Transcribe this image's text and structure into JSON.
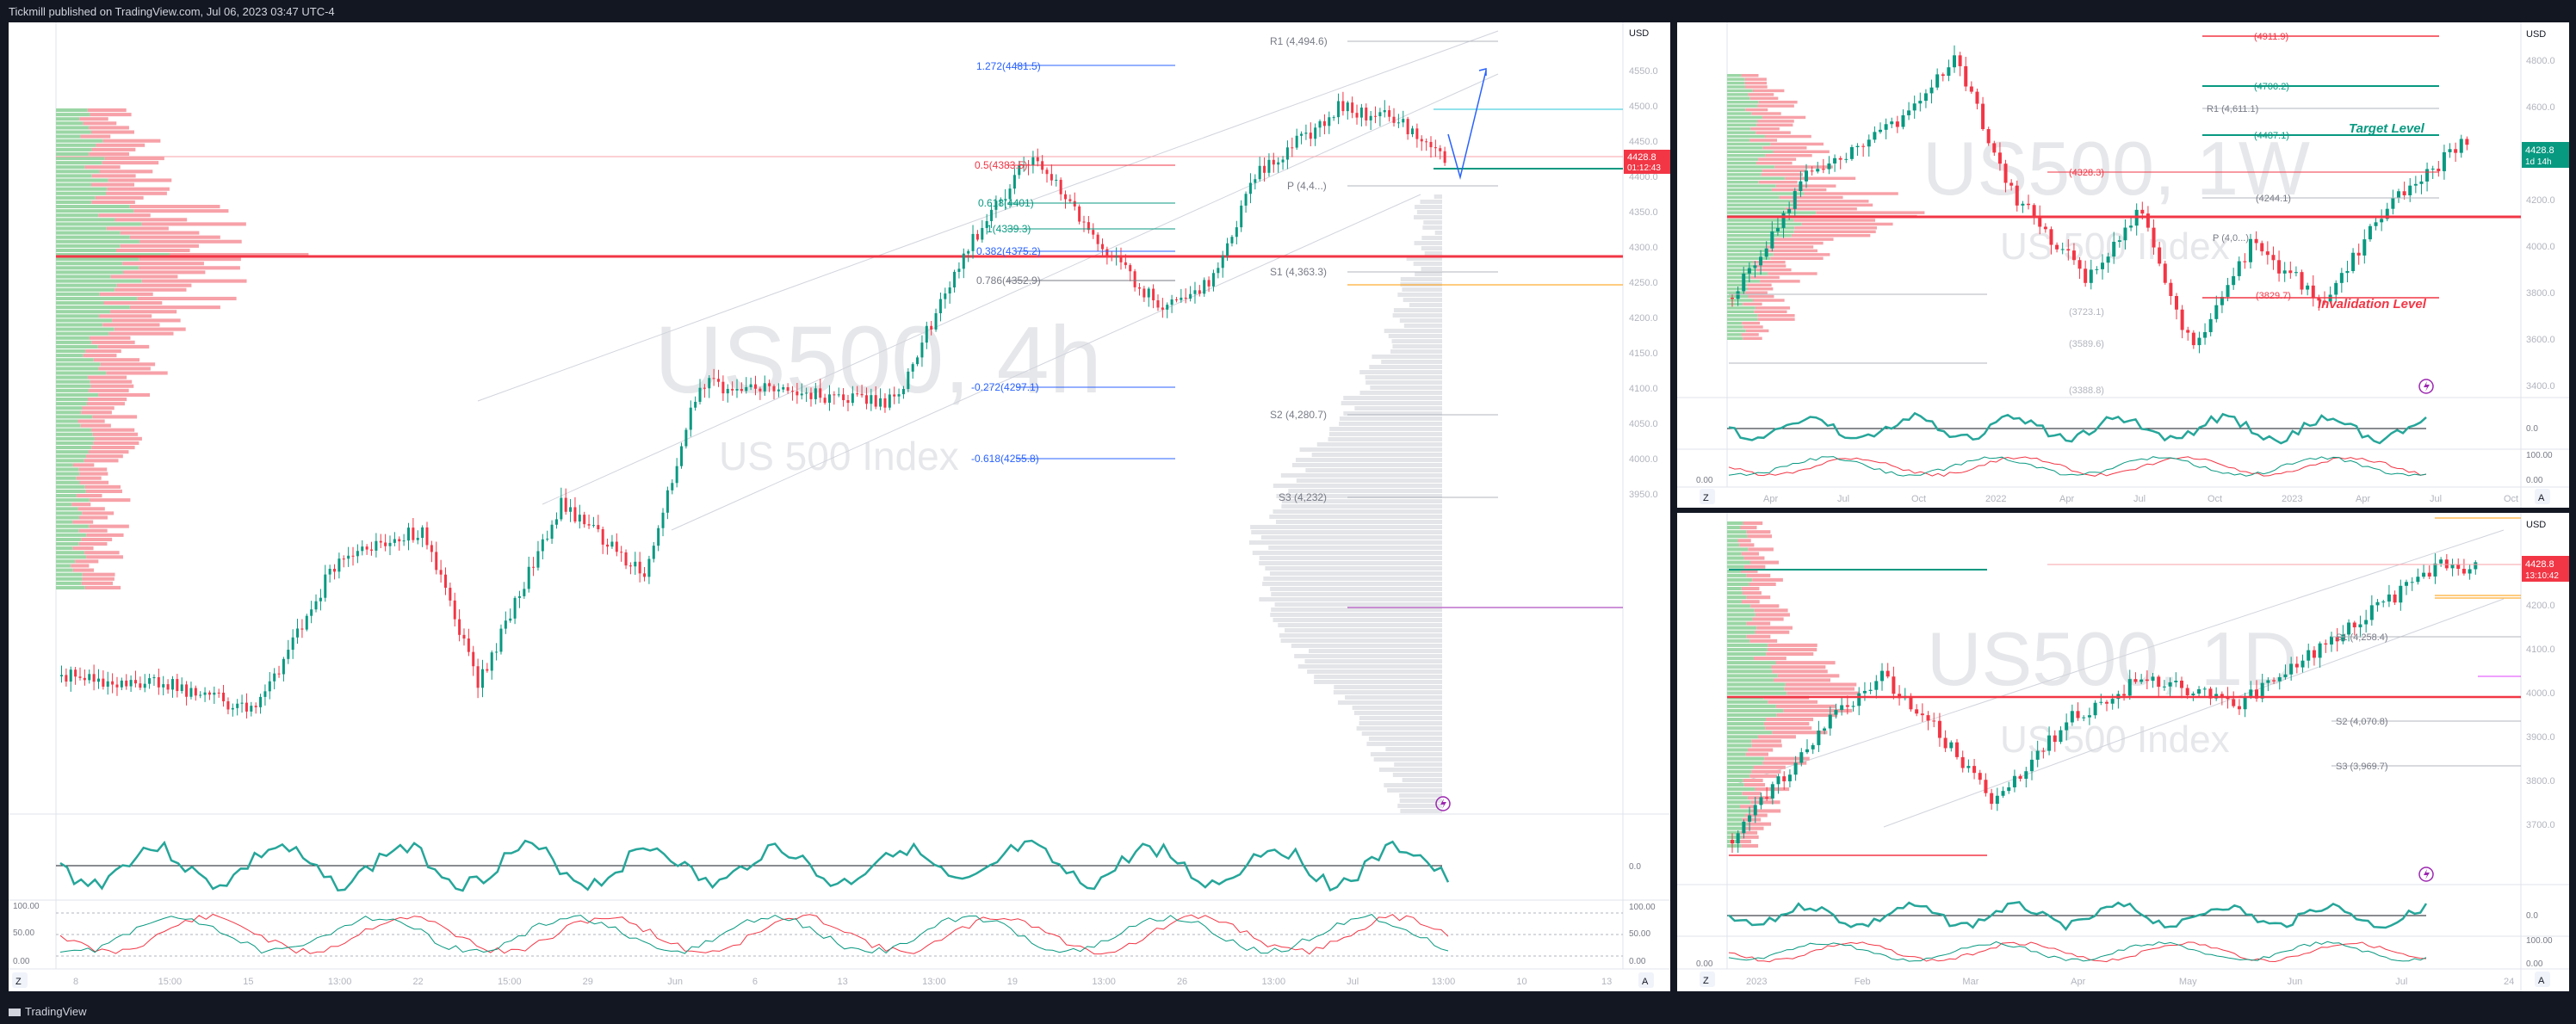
{
  "header": {
    "publish_line": "Tickmill published on TradingView.com, Jul 06, 2023 03:47 UTC-4"
  },
  "footer": {
    "brand": "TradingView"
  },
  "colors": {
    "bull": "#26a69a",
    "bear": "#ef5350",
    "green_candle": "#089981",
    "red_candle": "#f23645",
    "price_tag_red": "#f23645",
    "price_tag_green": "#089981",
    "pivot_line": "#b2b5be",
    "fib_blue": "#2962ff"
  },
  "main_chart": {
    "watermark_symbol": "US500, 4h",
    "watermark_name": "US 500 Index",
    "currency": "USD",
    "price_axis": [
      "4550.0",
      "4500.0",
      "4450.0",
      "4400.0",
      "4350.0",
      "4300.0",
      "4250.0",
      "4200.0",
      "4150.0",
      "4100.0",
      "4050.0",
      "4000.0",
      "3950.0"
    ],
    "last_price": "4428.8",
    "countdown": "01:12:43",
    "time_axis": [
      "8",
      "15:00",
      "15",
      "13:00",
      "22",
      "15:00",
      "29",
      "Jun",
      "6",
      "13",
      "13:00",
      "19",
      "13:00",
      "26",
      "13:00",
      "Jul",
      "13:00",
      "10",
      "13"
    ],
    "fib_labels": [
      "1.272(4481.5)",
      "0.382(4375.2)",
      "-0.272(4297.1)",
      "-0.618(4255.8)",
      "0.5(4383.5)",
      "0.618(4401)",
      "1(4339.3)",
      "0.786(4352.9)"
    ],
    "pivot_labels": [
      "R1 (4,494.6)",
      "P (4,4...)",
      "S1 (4,363.3)",
      "S2 (4,280.7)",
      "S3 (4,232)"
    ],
    "osc1_axis": [
      "0.0"
    ],
    "osc2_axis": [
      "100.00",
      "50.00",
      "0.00"
    ],
    "axis_button": "A",
    "zoom_button": "Z"
  },
  "weekly_chart": {
    "watermark_symbol": "US500, 1W",
    "watermark_name": "US 500 Index",
    "currency": "USD",
    "price_axis": [
      "4800.0",
      "4600.0",
      "4400.0",
      "4200.0",
      "4000.0",
      "3800.0",
      "3600.0",
      "3400.0"
    ],
    "last_price": "4428.8",
    "countdown": "1d 14h",
    "level_labels": [
      "(4911.9)",
      "(4700.2)",
      "R1 (4,611.1)",
      "(4487.1)",
      "(4328.3)",
      "(4244.1)",
      "P (4,0...)",
      "(3829.7)",
      "(3723.1)",
      "(3589.6)",
      "(3388.8)"
    ],
    "target_label": "Target Level",
    "invalidation_label": "Invalidation Level",
    "time_axis": [
      "Apr",
      "Jul",
      "Oct",
      "2022",
      "Apr",
      "Jul",
      "Oct",
      "2023",
      "Apr",
      "Jul",
      "Oct"
    ],
    "osc1_axis": [
      "0.0"
    ],
    "osc2_axis": [
      "100.00",
      "0.00"
    ],
    "axis_button": "A",
    "zoom_button": "Z"
  },
  "daily_chart": {
    "watermark_symbol": "US500, 1D",
    "watermark_name": "US 500 Index",
    "currency": "USD",
    "price_axis": [
      "4300.0",
      "4200.0",
      "4100.0",
      "4000.0",
      "3900.0",
      "3800.0",
      "3700.0"
    ],
    "last_price": "4428.8",
    "countdown": "13:10:42",
    "pivot_labels": [
      "S1 (4,258.4)",
      "S2 (4,070.8)",
      "S3 (3,969.7)"
    ],
    "time_axis": [
      "2023",
      "Feb",
      "Mar",
      "Apr",
      "May",
      "Jun",
      "Jul",
      "24"
    ],
    "osc1_axis": [
      "0.0"
    ],
    "osc2_axis": [
      "100.00",
      "0.00"
    ],
    "axis_button": "A",
    "zoom_button": "Z"
  }
}
